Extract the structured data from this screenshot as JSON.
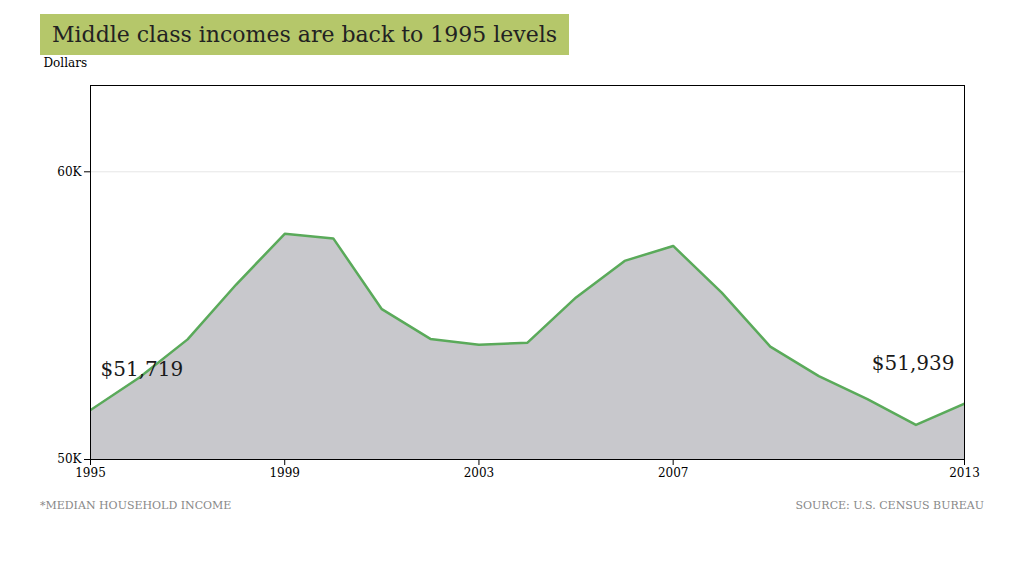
{
  "chart_data": {
    "type": "area",
    "title": "Middle class incomes are back to 1995 levels",
    "ylabel": "Dollars",
    "x": [
      1995,
      1996,
      1997,
      1998,
      1999,
      2000,
      2001,
      2002,
      2003,
      2004,
      2005,
      2006,
      2007,
      2008,
      2009,
      2010,
      2011,
      2012,
      2013
    ],
    "values": [
      51719,
      52843,
      54175,
      56082,
      57843,
      57685,
      55225,
      54191,
      53991,
      54061,
      55633,
      56903,
      57423,
      55803,
      53925,
      52900,
      52100,
      51200,
      51939
    ],
    "color": "#5aaa5a",
    "xlim": [
      1995,
      2013
    ],
    "xticks": [
      1995,
      1999,
      2003,
      2007,
      2013
    ],
    "ylim": [
      50000,
      63000
    ],
    "yticks": [
      {
        "value": 50000,
        "label": "50K"
      },
      {
        "value": 60000,
        "label": "60K"
      }
    ],
    "grid": true,
    "annotations": [
      "$51,719",
      "$51,939"
    ],
    "footnotes": [
      "*MEDIAN HOUSEHOLD INCOME",
      "SOURCE: U.S. CENSUS BUREAU"
    ]
  }
}
